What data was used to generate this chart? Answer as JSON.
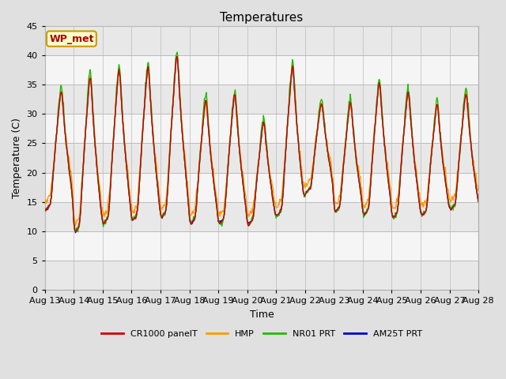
{
  "title": "Temperatures",
  "xlabel": "Time",
  "ylabel": "Temperature (C)",
  "ylim": [
    0,
    45
  ],
  "yticks": [
    0,
    5,
    10,
    15,
    20,
    25,
    30,
    35,
    40,
    45
  ],
  "x_labels": [
    "Aug 13",
    "Aug 14",
    "Aug 15",
    "Aug 16",
    "Aug 17",
    "Aug 18",
    "Aug 19",
    "Aug 20",
    "Aug 21",
    "Aug 22",
    "Aug 23",
    "Aug 24",
    "Aug 25",
    "Aug 26",
    "Aug 27",
    "Aug 28"
  ],
  "legend_labels": [
    "CR1000 panelT",
    "HMP",
    "NR01 PRT",
    "AM25T PRT"
  ],
  "legend_colors": [
    "#cc0000",
    "#ff9900",
    "#22bb00",
    "#0000cc"
  ],
  "annotation_text": "WP_met",
  "annotation_color": "#aa0000",
  "annotation_bg": "#ffffcc",
  "annotation_border": "#cc9900",
  "title_fontsize": 11,
  "label_fontsize": 9,
  "tick_fontsize": 8,
  "fig_width": 6.4,
  "fig_height": 4.8,
  "band_colors": [
    "#f5f5f5",
    "#e8e8e8"
  ],
  "fig_facecolor": "#e0e0e0"
}
